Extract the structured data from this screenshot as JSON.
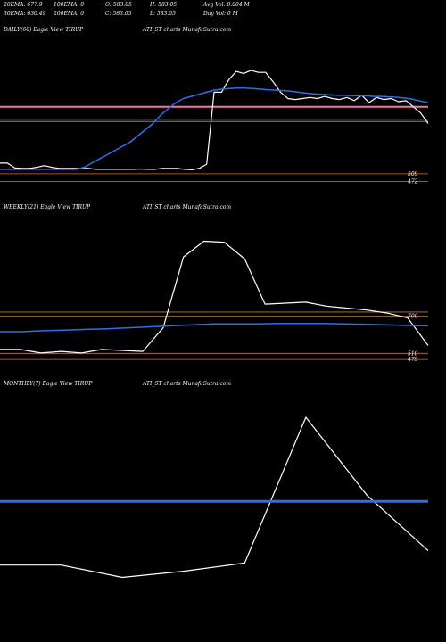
{
  "header": {
    "row1": [
      "20EMA: 677.9",
      "100EMA: 0",
      "O: 583.05",
      "H: 583.05",
      "Avg Vol: 0.004  M"
    ],
    "row2": [
      "30EMA: 630.49",
      "200EMA: 0",
      "C: 583.05",
      "L: 583.05",
      "Day Vol: 0  M"
    ]
  },
  "colors": {
    "background": "#000000",
    "price": "#ffffff",
    "ema": "#2f6fe8",
    "level_pink": "#ff6fa8",
    "level_orange": "#c87a3a",
    "level_gray": "#9a9a9a"
  },
  "chart_data": [
    {
      "type": "line",
      "title_left": "DAILY(60) Eagle   View  TIRUP",
      "title_right": "ATI_ST charts MunafaSutra.com",
      "price_labels": [
        "509",
        "472"
      ],
      "series": [
        {
          "values": [
            560,
            560,
            537,
            535,
            535,
            540,
            548,
            540,
            535,
            535,
            535,
            535,
            535,
            530,
            530,
            530,
            530,
            530,
            530,
            532,
            530,
            530,
            535,
            535,
            535,
            530,
            528,
            535,
            555,
            900,
            900,
            960,
            1000,
            990,
            1005,
            995,
            995,
            950,
            900,
            870,
            865,
            870,
            875,
            870,
            880,
            870,
            865,
            875,
            860,
            885,
            850,
            875,
            865,
            870,
            855,
            860,
            830,
            800,
            750
          ]
        },
        {
          "values": [
            530,
            530,
            530,
            530,
            530,
            530,
            530,
            530,
            530,
            530,
            530,
            540,
            560,
            580,
            600,
            620,
            640,
            660,
            690,
            720,
            750,
            790,
            820,
            850,
            870,
            880,
            890,
            900,
            910,
            915,
            918,
            920,
            920,
            918,
            915,
            912,
            910,
            908,
            905,
            900,
            896,
            892,
            890,
            888,
            886,
            885,
            884,
            883,
            882,
            880,
            880,
            878,
            876,
            872,
            866,
            858,
            850
          ]
        }
      ],
      "levels": [
        {
          "value": 830,
          "color": "pink"
        },
        {
          "value": 760,
          "color": "gray"
        },
        {
          "value": 770,
          "color": "gray"
        },
        {
          "value": 509,
          "color": "orange"
        },
        {
          "value": 472,
          "color": "orange"
        }
      ]
    },
    {
      "type": "line",
      "title_left": "WEEKLY(21) Eagle   View  TIRUP",
      "title_right": "ATI_ST charts MunafaSutra.com",
      "price_labels": [
        "700",
        "510",
        "479"
      ],
      "series": [
        {
          "values": [
            530,
            530,
            512,
            520,
            512,
            530,
            525,
            520,
            640,
            1000,
            1080,
            1075,
            990,
            760,
            765,
            770,
            750,
            740,
            730,
            715,
            690,
            550
          ]
        },
        {
          "values": [
            620,
            620,
            625,
            628,
            632,
            635,
            640,
            645,
            650,
            655,
            660,
            660,
            660,
            662,
            662,
            662,
            660,
            658,
            655,
            652,
            650
          ]
        }
      ],
      "levels": [
        {
          "value": 720,
          "color": "orange"
        },
        {
          "value": 700,
          "color": "orange"
        },
        {
          "value": 510,
          "color": "orange"
        },
        {
          "value": 479,
          "color": "orange"
        }
      ]
    },
    {
      "type": "line",
      "title_left": "MONTHLY(7) Eagle   View  TIRUP",
      "title_right": "ATI_ST charts MunafaSutra.com",
      "price_labels": [],
      "series": [
        {
          "values": [
            560,
            560,
            500,
            530,
            570,
            1280,
            900,
            630
          ]
        },
        {
          "values": [
            870,
            870,
            870,
            870,
            870,
            870,
            870,
            870
          ]
        }
      ],
      "levels": []
    }
  ]
}
